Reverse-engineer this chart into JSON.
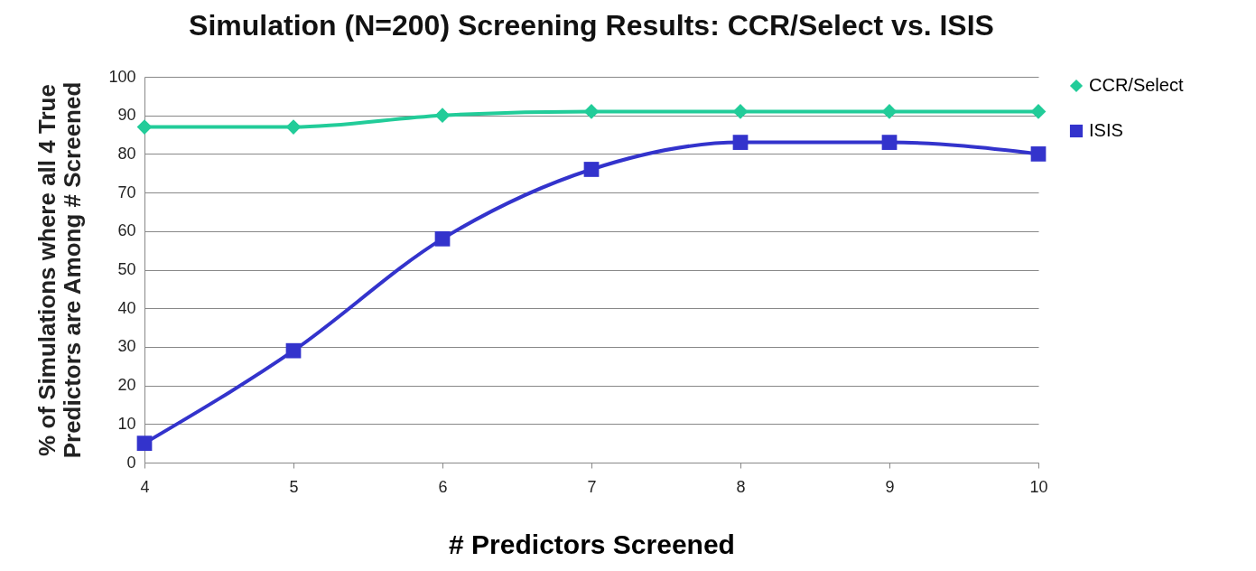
{
  "chart_data": {
    "type": "line",
    "title": "Simulation (N=200) Screening Results: CCR/Select vs. ISIS",
    "xlabel": "# Predictors Screened",
    "ylabel": "% of Simulations where all 4  True\nPredictors are Among # Screened",
    "x": [
      4,
      5,
      6,
      7,
      8,
      9,
      10
    ],
    "series": [
      {
        "name": "CCR/Select",
        "color": "#22cc99",
        "marker": "diamond",
        "values": [
          87,
          87,
          90,
          91,
          91,
          91,
          91
        ]
      },
      {
        "name": "ISIS",
        "color": "#3333cc",
        "marker": "square",
        "values": [
          5,
          29,
          58,
          76,
          83,
          83,
          80
        ]
      }
    ],
    "xlim": [
      4,
      10
    ],
    "xticks": [
      4,
      5,
      6,
      7,
      8,
      9,
      10
    ],
    "ylim": [
      0,
      100
    ],
    "yticks": [
      0,
      10,
      20,
      30,
      40,
      50,
      60,
      70,
      80,
      90,
      100
    ],
    "grid": "y",
    "legend": "right"
  }
}
